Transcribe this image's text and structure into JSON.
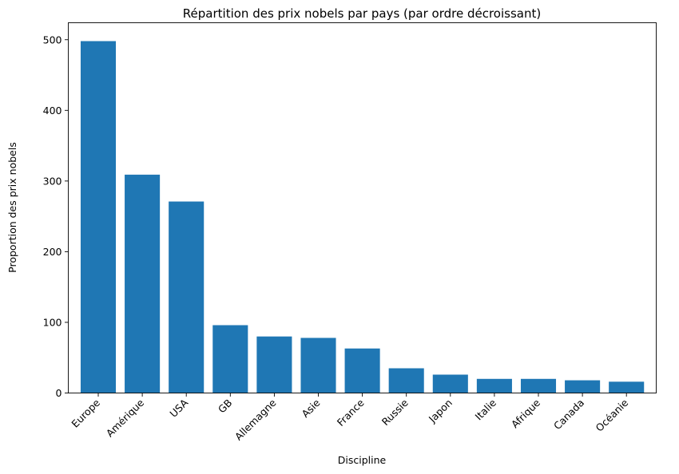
{
  "chart_data": {
    "type": "bar",
    "title": "Répartition des prix nobels par pays (par ordre décroissant)",
    "xlabel": "Discipline",
    "ylabel": "Proportion des prix nobels",
    "categories": [
      "Europe",
      "Amérique",
      "USA",
      "GB",
      "Allemagne",
      "Asie",
      "France",
      "Russie",
      "Japon",
      "Italie",
      "Afrique",
      "Canada",
      "Océanie"
    ],
    "values": [
      498,
      309,
      271,
      96,
      80,
      78,
      63,
      35,
      26,
      20,
      20,
      18,
      16
    ],
    "ylim": [
      0,
      524
    ],
    "yticks": [
      0,
      100,
      200,
      300,
      400,
      500
    ],
    "grid": false,
    "bar_color": "#1f77b4"
  }
}
